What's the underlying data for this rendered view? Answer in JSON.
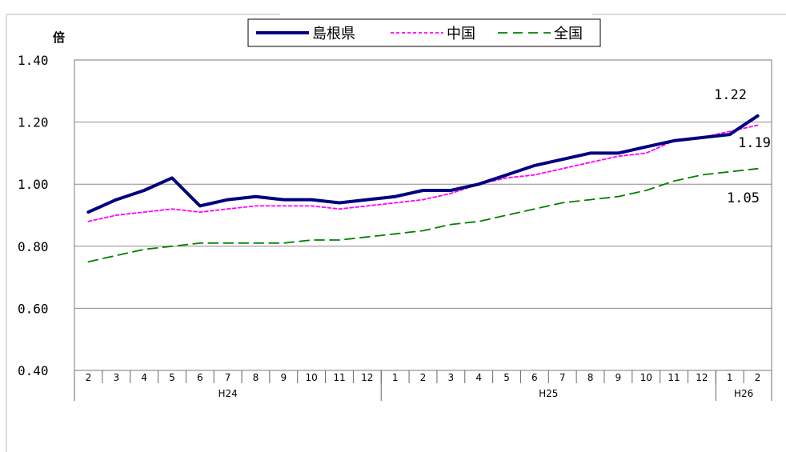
{
  "chart_data": {
    "type": "line",
    "ylabel": "倍",
    "ylim": [
      0.4,
      1.4
    ],
    "yticks": [
      "0.40",
      "0.60",
      "0.80",
      "1.00",
      "1.20",
      "1.40"
    ],
    "categories": [
      "2",
      "3",
      "4",
      "5",
      "6",
      "7",
      "8",
      "9",
      "10",
      "11",
      "12",
      "1",
      "2",
      "3",
      "4",
      "5",
      "6",
      "7",
      "8",
      "9",
      "10",
      "11",
      "12",
      "1",
      "2"
    ],
    "groups": [
      {
        "label": "H24",
        "count": 11
      },
      {
        "label": "H25",
        "count": 12
      },
      {
        "label": "H26",
        "count": 2
      }
    ],
    "series": [
      {
        "name": "島根県",
        "color": "#000080",
        "style": "solid",
        "values": [
          0.91,
          0.95,
          0.98,
          1.02,
          0.93,
          0.95,
          0.96,
          0.95,
          0.95,
          0.94,
          0.95,
          0.96,
          0.98,
          0.98,
          1.0,
          1.03,
          1.06,
          1.08,
          1.1,
          1.1,
          1.12,
          1.14,
          1.15,
          1.16,
          1.22
        ]
      },
      {
        "name": "中国",
        "color": "#ff00ff",
        "style": "dotted",
        "values": [
          0.88,
          0.9,
          0.91,
          0.92,
          0.91,
          0.92,
          0.93,
          0.93,
          0.93,
          0.92,
          0.93,
          0.94,
          0.95,
          0.97,
          1.0,
          1.02,
          1.03,
          1.05,
          1.07,
          1.09,
          1.1,
          1.14,
          1.15,
          1.17,
          1.19
        ]
      },
      {
        "name": "全国",
        "color": "#008000",
        "style": "dashed",
        "values": [
          0.75,
          0.77,
          0.79,
          0.8,
          0.81,
          0.81,
          0.81,
          0.81,
          0.82,
          0.82,
          0.83,
          0.84,
          0.85,
          0.87,
          0.88,
          0.9,
          0.92,
          0.94,
          0.95,
          0.96,
          0.98,
          1.01,
          1.03,
          1.04,
          1.05
        ]
      }
    ],
    "end_labels": [
      "1.22",
      "1.19",
      "1.05"
    ],
    "grid": true,
    "legend": "top-center"
  }
}
